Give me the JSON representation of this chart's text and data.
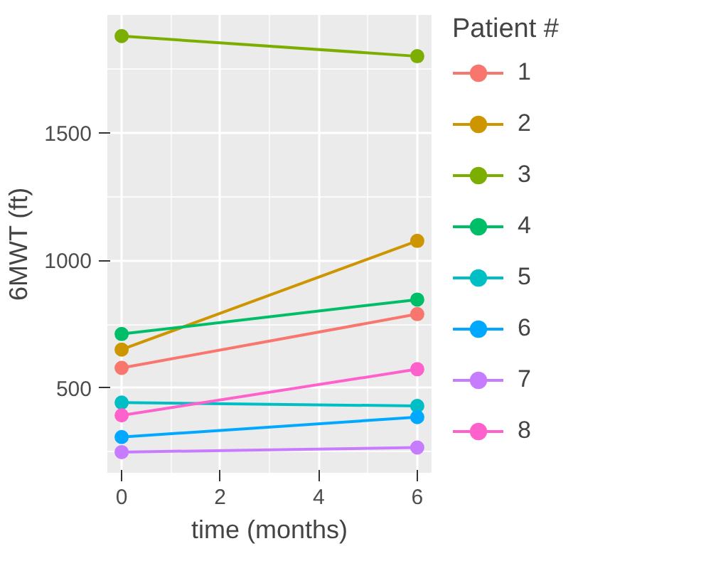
{
  "chart_data": {
    "type": "line",
    "xlabel": "time (months)",
    "ylabel": "6MWT (ft)",
    "legend_title": "Patient #",
    "x": [
      0,
      6
    ],
    "xlim": [
      -0.29,
      6.29
    ],
    "ylim": [
      168,
      1963
    ],
    "xticks": [
      0,
      2,
      4,
      6
    ],
    "yticks": [
      500,
      1000,
      1500
    ],
    "grid": true,
    "legend": "right",
    "marker": "circle",
    "line_style": "solid",
    "series": [
      {
        "name": "1",
        "color": "#f8766d",
        "values": [
          579,
          790
        ]
      },
      {
        "name": "2",
        "color": "#cd9600",
        "values": [
          651,
          1077
        ]
      },
      {
        "name": "3",
        "color": "#7cae00",
        "values": [
          1880,
          1801
        ]
      },
      {
        "name": "4",
        "color": "#00be67",
        "values": [
          712,
          847
        ]
      },
      {
        "name": "5",
        "color": "#00bfc4",
        "values": [
          443,
          430
        ]
      },
      {
        "name": "6",
        "color": "#00a9ff",
        "values": [
          308,
          386
        ]
      },
      {
        "name": "7",
        "color": "#c77cff",
        "values": [
          249,
          267
        ]
      },
      {
        "name": "8",
        "color": "#ff61cc",
        "values": [
          393,
          574
        ]
      }
    ]
  }
}
